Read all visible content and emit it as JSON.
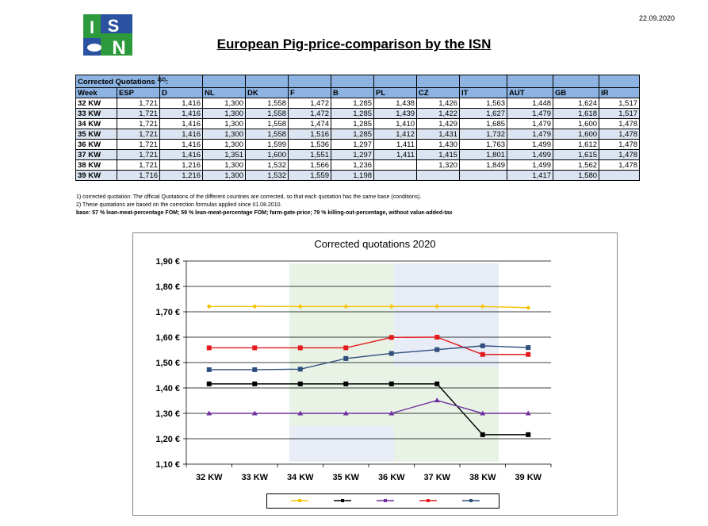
{
  "date": "22.09.2020",
  "logo": {
    "letters": [
      "I",
      "S",
      "N"
    ],
    "colors": {
      "green": "#2e9a3e",
      "blue": "#2a52a0"
    }
  },
  "title": "European Pig-price-comparison by the ISN",
  "table": {
    "caption": "Corrected Quotations",
    "caption_sup": "1)2)",
    "caption_suffix": ":",
    "headers": [
      "Week",
      "ESP",
      "D",
      "NL",
      "DK",
      "F",
      "B",
      "PL",
      "CZ",
      "IT",
      "AUT",
      "GB",
      "IR"
    ],
    "rows": [
      [
        "32 KW",
        "1,721",
        "1,416",
        "1,300",
        "1,558",
        "1,472",
        "1,285",
        "1,438",
        "1,426",
        "1,563",
        "1,448",
        "1,624",
        "1,517"
      ],
      [
        "33 KW",
        "1,721",
        "1,416",
        "1,300",
        "1,558",
        "1,472",
        "1,285",
        "1,439",
        "1,422",
        "1,627",
        "1,479",
        "1,618",
        "1,517"
      ],
      [
        "34 KW",
        "1,721",
        "1,416",
        "1,300",
        "1,558",
        "1,474",
        "1,285",
        "1,410",
        "1,429",
        "1,685",
        "1,479",
        "1,600",
        "1,478"
      ],
      [
        "35 KW",
        "1,721",
        "1,416",
        "1,300",
        "1,558",
        "1,516",
        "1,285",
        "1,412",
        "1,431",
        "1,732",
        "1,479",
        "1,600",
        "1,478"
      ],
      [
        "36 KW",
        "1,721",
        "1,416",
        "1,300",
        "1,599",
        "1,536",
        "1,297",
        "1,411",
        "1,430",
        "1,763",
        "1,499",
        "1,612",
        "1,478"
      ],
      [
        "37 KW",
        "1,721",
        "1,416",
        "1,351",
        "1,600",
        "1,551",
        "1,297",
        "1,411",
        "1,415",
        "1,801",
        "1,499",
        "1,615",
        "1,478"
      ],
      [
        "38 KW",
        "1,721",
        "1,216",
        "1,300",
        "1,532",
        "1,566",
        "1,236",
        "",
        "1,320",
        "1,849",
        "1,499",
        "1,562",
        "1,478"
      ],
      [
        "39 KW",
        "1,716",
        "1,216",
        "1,300",
        "1,532",
        "1,559",
        "1,198",
        "",
        "",
        "",
        "1,417",
        "1,580",
        ""
      ]
    ]
  },
  "notes": [
    "1) corrected quotation: The official Quotations of the different countries are corrected, so that each quotation has the same base (conditions).",
    "2) These quotations are based on the correction formulas applied since 01.08.2010.",
    "base: 57 % lean-meat-percentage FOM; 59 % lean-meat-percentage FOM; farm-gate-price; 79 % killing-out-percentage, without value-added-tax"
  ],
  "chart_data": {
    "type": "line",
    "title": "Corrected quotations 2020",
    "categories": [
      "32 KW",
      "33 KW",
      "34 KW",
      "35 KW",
      "36 KW",
      "37 KW",
      "38 KW",
      "39 KW"
    ],
    "ylim": [
      1.1,
      1.9
    ],
    "yticks": [
      1.1,
      1.2,
      1.3,
      1.4,
      1.5,
      1.6,
      1.7,
      1.8,
      1.9
    ],
    "ytick_labels": [
      "1,10 €",
      "1,20 €",
      "1,30 €",
      "1,40 €",
      "1,50 €",
      "1,60 €",
      "1,70 €",
      "1,80 €",
      "1,90 €"
    ],
    "grid": true,
    "legend_placement": "bottom",
    "series": [
      {
        "color": "#f5c400",
        "marker": "diamond",
        "values": [
          1.721,
          1.721,
          1.721,
          1.721,
          1.721,
          1.721,
          1.721,
          1.716
        ]
      },
      {
        "color": "#000000",
        "marker": "square",
        "values": [
          1.416,
          1.416,
          1.416,
          1.416,
          1.416,
          1.416,
          1.216,
          1.216
        ]
      },
      {
        "color": "#7030a0",
        "marker": "triangle",
        "values": [
          1.3,
          1.3,
          1.3,
          1.3,
          1.3,
          1.351,
          1.3,
          1.3
        ]
      },
      {
        "color": "#e41a1c",
        "marker": "square",
        "values": [
          1.558,
          1.558,
          1.558,
          1.558,
          1.599,
          1.6,
          1.532,
          1.532
        ]
      },
      {
        "color": "#2e4e7e",
        "marker": "square",
        "values": [
          1.472,
          1.472,
          1.474,
          1.516,
          1.536,
          1.551,
          1.566,
          1.559
        ]
      }
    ]
  }
}
